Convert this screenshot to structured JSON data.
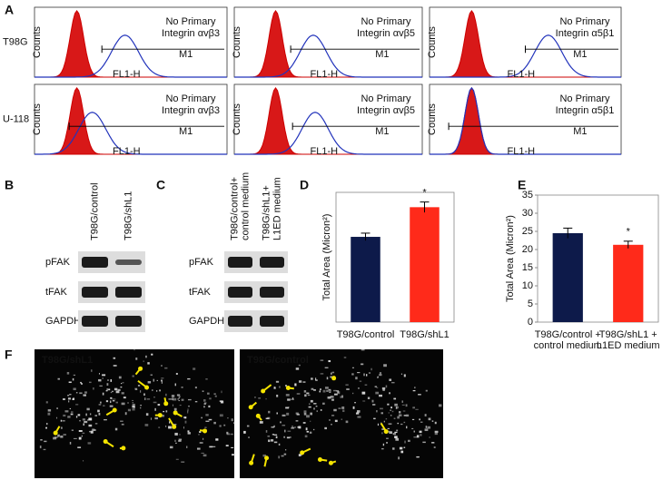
{
  "panel_labels": [
    "A",
    "B",
    "C",
    "D",
    "E",
    "F"
  ],
  "flow": {
    "row_labels": [
      "T98G",
      "U-118"
    ],
    "negative_label": "No Primary",
    "gate_label": "M1",
    "x_label": "FL1-H",
    "y_label": "Counts",
    "markers": [
      [
        "Integrin αvβ3",
        "Integrin αvβ5",
        "Integrin α5β1"
      ],
      [
        "Integrin αvβ3",
        "Integrin αvβ5",
        "Integrin α5β1"
      ]
    ]
  },
  "blots": {
    "B": {
      "lanes": [
        [
          "T98G/control"
        ],
        [
          "T98G/shL1"
        ]
      ],
      "bands": [
        "pFAK",
        "tFAK",
        "GAPDH"
      ]
    },
    "C": {
      "lanes": [
        [
          "T98G/control+",
          "control medium"
        ],
        [
          "T98G/shL1+",
          "L1ED medium"
        ]
      ],
      "bands": [
        "pFAK",
        "tFAK",
        "GAPDH"
      ]
    }
  },
  "chart_data": [
    {
      "type": "bar",
      "y_label": "Total Area (Micron²)",
      "categories": [
        [
          "T98G/control"
        ],
        [
          "T98G/shL1"
        ]
      ],
      "values": [
        23,
        31
      ],
      "errors": [
        1,
        1.4
      ],
      "colors": [
        "#0d1a4a",
        "#ff2a1a"
      ],
      "significance": [
        null,
        "*"
      ],
      "ylim": [
        0,
        35
      ]
    },
    {
      "type": "bar",
      "y_label": "Total Area (Micron²)",
      "categories": [
        [
          "T98G/control +",
          "control medium"
        ],
        [
          "T98G/shL1 +",
          "L1ED medium"
        ]
      ],
      "values": [
        24.5,
        21.3
      ],
      "errors": [
        1.4,
        1
      ],
      "colors": [
        "#0d1a4a",
        "#ff2a1a"
      ],
      "significance": [
        null,
        "*"
      ],
      "ylim": [
        0,
        35
      ],
      "yticks": [
        0,
        5,
        10,
        15,
        20,
        25,
        30,
        35
      ]
    }
  ],
  "micrographs": [
    "T98G/shL1",
    "T98G/control"
  ]
}
